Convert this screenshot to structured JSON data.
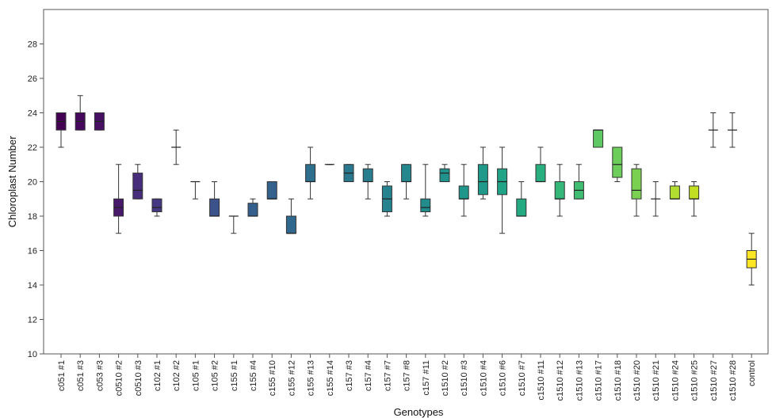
{
  "chart_data": {
    "type": "box",
    "title": "",
    "xlabel": "Genotypes",
    "ylabel": "Chloroplast Number",
    "ylim": [
      10,
      30
    ],
    "yticks": [
      10,
      12,
      14,
      16,
      18,
      20,
      22,
      24,
      26,
      28
    ],
    "grid": false,
    "legend": "none",
    "categories": [
      {
        "label": "c051 #1",
        "min": 22,
        "q1": 23,
        "median": 23.5,
        "q3": 24,
        "max": 24,
        "color": "#440154"
      },
      {
        "label": "c051 #3",
        "min": 23,
        "q1": 23,
        "median": 23.5,
        "q3": 24,
        "max": 25,
        "color": "#46085c"
      },
      {
        "label": "c053 #3",
        "min": 23,
        "q1": 23,
        "median": 23.5,
        "q3": 24,
        "max": 24,
        "color": "#471063"
      },
      {
        "label": "c0510 #2",
        "min": 17,
        "q1": 18,
        "median": 18.5,
        "q3": 19,
        "max": 21,
        "color": "#48186a"
      },
      {
        "label": "c0510 #3",
        "min": 19,
        "q1": 19,
        "median": 19.5,
        "q3": 20.5,
        "max": 21,
        "color": "#472d7b"
      },
      {
        "label": "c102 #1",
        "min": 18,
        "q1": 18.25,
        "median": 18.5,
        "q3": 19,
        "max": 19,
        "color": "#453781"
      },
      {
        "label": "c102 #2",
        "min": 21,
        "q1": 22,
        "median": 22,
        "q3": 22,
        "max": 23,
        "color": "#414487"
      },
      {
        "label": "c105 #1",
        "min": 19,
        "q1": 20,
        "median": 20,
        "q3": 20,
        "max": 20,
        "color": "#3e4a89"
      },
      {
        "label": "c105 #2",
        "min": 18,
        "q1": 18,
        "median": 18,
        "q3": 19,
        "max": 20,
        "color": "#3b528b"
      },
      {
        "label": "c155 #1",
        "min": 17,
        "q1": 18,
        "median": 18,
        "q3": 18,
        "max": 18,
        "color": "#38598c"
      },
      {
        "label": "c155 #4",
        "min": 18,
        "q1": 18,
        "median": 18,
        "q3": 18.75,
        "max": 19,
        "color": "#355f8d"
      },
      {
        "label": "c155 #10",
        "min": 19,
        "q1": 19,
        "median": 19,
        "q3": 20,
        "max": 20,
        "color": "#33638d"
      },
      {
        "label": "c155 #12",
        "min": 17,
        "q1": 17,
        "median": 17,
        "q3": 18,
        "max": 19,
        "color": "#31688e"
      },
      {
        "label": "c155 #13",
        "min": 19,
        "q1": 20,
        "median": 20,
        "q3": 21,
        "max": 22,
        "color": "#2e6f8e"
      },
      {
        "label": "c155 #14",
        "min": 21,
        "q1": 21,
        "median": 21,
        "q3": 21,
        "max": 21,
        "color": "#2c738e"
      },
      {
        "label": "c157 #3",
        "min": 20,
        "q1": 20,
        "median": 20.5,
        "q3": 21,
        "max": 21,
        "color": "#2a788e"
      },
      {
        "label": "c157 #4",
        "min": 19,
        "q1": 20,
        "median": 20,
        "q3": 20.75,
        "max": 21,
        "color": "#287d8e"
      },
      {
        "label": "c157 #7",
        "min": 18,
        "q1": 18.25,
        "median": 19,
        "q3": 19.75,
        "max": 20,
        "color": "#26828e"
      },
      {
        "label": "c157 #8",
        "min": 19,
        "q1": 20,
        "median": 20,
        "q3": 21,
        "max": 21,
        "color": "#24878e"
      },
      {
        "label": "c157 #11",
        "min": 18,
        "q1": 18.25,
        "median": 18.5,
        "q3": 19,
        "max": 21,
        "color": "#228c8d"
      },
      {
        "label": "c1510 #2",
        "min": 20,
        "q1": 20,
        "median": 20.5,
        "q3": 20.75,
        "max": 21,
        "color": "#21918c"
      },
      {
        "label": "c1510 #3",
        "min": 18,
        "q1": 19,
        "median": 19,
        "q3": 19.75,
        "max": 21,
        "color": "#1f968b"
      },
      {
        "label": "c1510 #4",
        "min": 19,
        "q1": 19.25,
        "median": 20,
        "q3": 21,
        "max": 22,
        "color": "#1f9a8a"
      },
      {
        "label": "c1510 #6",
        "min": 17,
        "q1": 19.25,
        "median": 20,
        "q3": 20.75,
        "max": 22,
        "color": "#20a386"
      },
      {
        "label": "c1510 #7",
        "min": 18,
        "q1": 18,
        "median": 18,
        "q3": 19,
        "max": 20,
        "color": "#25ab82"
      },
      {
        "label": "c1510 #11",
        "min": 20,
        "q1": 20,
        "median": 20,
        "q3": 21,
        "max": 22,
        "color": "#29af7f"
      },
      {
        "label": "c1510 #12",
        "min": 18,
        "q1": 19,
        "median": 19,
        "q3": 20,
        "max": 21,
        "color": "#35b779"
      },
      {
        "label": "c1510 #13",
        "min": 19,
        "q1": 19,
        "median": 19.5,
        "q3": 20,
        "max": 21,
        "color": "#40bd72"
      },
      {
        "label": "c1510 #17",
        "min": 22,
        "q1": 22,
        "median": 23,
        "q3": 23,
        "max": 23,
        "color": "#5ec962"
      },
      {
        "label": "c1510 #18",
        "min": 20,
        "q1": 20.25,
        "median": 21,
        "q3": 22,
        "max": 22,
        "color": "#6ccd5a"
      },
      {
        "label": "c1510 #20",
        "min": 18,
        "q1": 19,
        "median": 19.5,
        "q3": 20.75,
        "max": 21,
        "color": "#7ad151"
      },
      {
        "label": "c1510 #21",
        "min": 18,
        "q1": 19,
        "median": 19,
        "q3": 19,
        "max": 20,
        "color": "#95d840"
      },
      {
        "label": "c1510 #24",
        "min": 19,
        "q1": 19,
        "median": 19,
        "q3": 19.75,
        "max": 20,
        "color": "#b0dd2f"
      },
      {
        "label": "c1510 #25",
        "min": 18,
        "q1": 19,
        "median": 19,
        "q3": 19.75,
        "max": 20,
        "color": "#c2df23"
      },
      {
        "label": "c1510 #27",
        "min": 22,
        "q1": 23,
        "median": 23,
        "q3": 23,
        "max": 24,
        "color": "#d8e219"
      },
      {
        "label": "c1510 #28",
        "min": 22,
        "q1": 23,
        "median": 23,
        "q3": 23,
        "max": 24,
        "color": "#e5e419"
      },
      {
        "label": "control",
        "min": 14,
        "q1": 15,
        "median": 15.5,
        "q3": 16,
        "max": 17,
        "color": "#fde725"
      }
    ]
  }
}
